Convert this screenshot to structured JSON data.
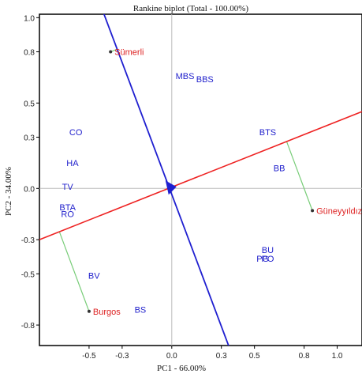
{
  "chart_data": {
    "type": "scatter",
    "title": "Rankine biplot (Total - 100.00%)",
    "xlabel": "PC1 - 66.00%",
    "ylabel": "PC2 - 34.00%",
    "xlim": [
      -0.8,
      1.15
    ],
    "ylim": [
      -0.92,
      1.02
    ],
    "xticks": [
      -0.5,
      -0.3,
      0.0,
      0.3,
      0.5,
      0.8,
      1.0
    ],
    "xtick_labels": [
      "-0.5",
      "-0.3",
      "0.0",
      "0.3",
      "0.5",
      "0.8",
      "1.0"
    ],
    "yticks": [
      1.0,
      0.8,
      0.5,
      0.3,
      0.0,
      -0.3,
      -0.5,
      -0.8
    ],
    "ytick_labels": [
      "1.0",
      "0.8",
      "0.5",
      "0.3",
      "0.0",
      "-0.3",
      "-0.5",
      "-0.8"
    ],
    "grid": false,
    "colors": {
      "genotype": "#2222cc",
      "environment": "#dd2222",
      "axis_line": "#1f1fd0",
      "red_line": "#ee2222",
      "perpendicular": "#77cc77",
      "zero_line": "#bbbbbb"
    },
    "genotypes": [
      {
        "label": "MBS",
        "x": 0.08,
        "y": 0.66
      },
      {
        "label": "BBS",
        "x": 0.2,
        "y": 0.64
      },
      {
        "label": "CO",
        "x": -0.58,
        "y": 0.33
      },
      {
        "label": "BTS",
        "x": 0.58,
        "y": 0.33
      },
      {
        "label": "HA",
        "x": -0.6,
        "y": 0.15
      },
      {
        "label": "BB",
        "x": 0.65,
        "y": 0.12
      },
      {
        "label": "TV",
        "x": -0.63,
        "y": 0.01
      },
      {
        "label": "BTA",
        "x": -0.63,
        "y": -0.11
      },
      {
        "label": "RO",
        "x": -0.63,
        "y": -0.15
      },
      {
        "label": "BU",
        "x": 0.58,
        "y": -0.36
      },
      {
        "label": "PG",
        "x": 0.55,
        "y": -0.41
      },
      {
        "label": "PO",
        "x": 0.58,
        "y": -0.41
      },
      {
        "label": "BV",
        "x": -0.47,
        "y": -0.51
      },
      {
        "label": "BS",
        "x": -0.19,
        "y": -0.71
      }
    ],
    "environments": [
      {
        "label": "Sümerli",
        "x": -0.37,
        "y": 0.8
      },
      {
        "label": "Güneyyıldız",
        "x": 0.85,
        "y": -0.13
      },
      {
        "label": "Burgos",
        "x": -0.5,
        "y": -0.72
      }
    ],
    "lines": {
      "red": {
        "x1": -0.8,
        "y1": -0.3,
        "x2": 1.15,
        "y2": 0.45
      },
      "blue": {
        "x1": -0.46,
        "y1": 1.15,
        "x2": 0.355,
        "y2": -0.95
      }
    }
  }
}
